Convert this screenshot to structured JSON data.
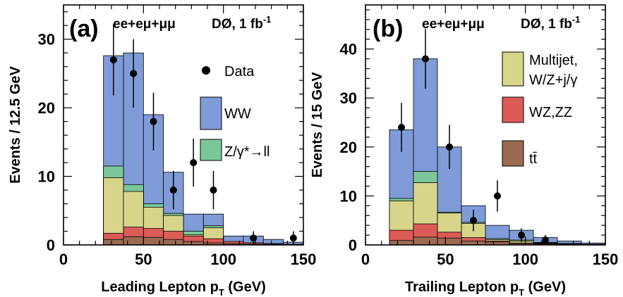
{
  "colors": {
    "ww": "#7f9bd8",
    "zgamma": "#7cc79a",
    "multijet": "#d6d58a",
    "wzzz": "#dd5b57",
    "ttbar": "#9b6a52",
    "data": "#000000"
  },
  "chart_data": [
    {
      "type": "bar",
      "panel": "(a)",
      "header": "ee+eμ+μμ",
      "experiment": "DØ, 1 fb",
      "experiment_sup": "-1",
      "xlabel_main": "Leading Lepton p",
      "xlabel_sub": "T",
      "xlabel_unit": " (GeV)",
      "ylabel": "Events / 12.5 GeV",
      "xlim": [
        0,
        150
      ],
      "ylim": [
        0,
        35
      ],
      "xticks": [
        0,
        50,
        100,
        150
      ],
      "yticks": [
        0,
        10,
        20,
        30
      ],
      "tick_labels_x": [
        "0",
        "50",
        "100",
        "150"
      ],
      "tick_labels_y": [
        "0",
        "10",
        "20",
        "30"
      ],
      "bin_edges": [
        25,
        37.5,
        50,
        62.5,
        75,
        87.5,
        100,
        112.5,
        125,
        137.5,
        150
      ],
      "stack": [
        {
          "key": "ttbar",
          "values": [
            0.8,
            1.2,
            1.1,
            0.8,
            0.5,
            0.3,
            0.2,
            0.1,
            0.05,
            0.02
          ]
        },
        {
          "key": "wzzz",
          "values": [
            1.7,
            2.6,
            2.4,
            2.0,
            1.3,
            0.9,
            0.5,
            0.3,
            0.15,
            0.05
          ]
        },
        {
          "key": "multijet",
          "values": [
            9.8,
            7.8,
            5.5,
            4.3,
            1.5,
            2.5,
            0.2,
            0.15,
            0.1,
            0.05
          ]
        },
        {
          "key": "zgamma",
          "values": [
            11.5,
            8.8,
            6.0,
            4.6,
            2.0,
            2.8,
            0.4,
            0.3,
            0.2,
            0.1
          ]
        },
        {
          "key": "ww",
          "values": [
            27.6,
            28.0,
            19.0,
            10.6,
            4.5,
            4.5,
            1.3,
            1.3,
            0.8,
            0.4
          ]
        }
      ],
      "data_points": [
        {
          "x": 31.25,
          "y": 27,
          "err": 5.2
        },
        {
          "x": 43.75,
          "y": 25,
          "err": 5.0
        },
        {
          "x": 56.25,
          "y": 18,
          "err": 4.2
        },
        {
          "x": 68.75,
          "y": 8,
          "err": 2.8
        },
        {
          "x": 81.25,
          "y": 12,
          "err": 3.5
        },
        {
          "x": 93.75,
          "y": 8,
          "err": 2.8
        },
        {
          "x": 118.75,
          "y": 1,
          "err": 1.0
        },
        {
          "x": 143.75,
          "y": 1,
          "err": 1.0
        }
      ],
      "legend": [
        {
          "key": "data",
          "kind": "marker",
          "label": "Data"
        },
        {
          "key": "ww",
          "kind": "box",
          "label": "WW"
        },
        {
          "key": "zgamma",
          "kind": "box",
          "label": "Z/γ*→ll"
        }
      ]
    },
    {
      "type": "bar",
      "panel": "(b)",
      "header": "ee+eμ+μμ",
      "experiment": "DØ, 1 fb",
      "experiment_sup": "-1",
      "xlabel_main": "Trailing Lepton p",
      "xlabel_sub": "T",
      "xlabel_unit": " (GeV)",
      "ylabel": "Events / 15 GeV",
      "xlim": [
        0,
        150
      ],
      "ylim": [
        0,
        49
      ],
      "xticks": [
        0,
        50,
        100,
        150
      ],
      "yticks": [
        0,
        10,
        20,
        30,
        40
      ],
      "tick_labels_x": [
        "0",
        "50",
        "100",
        "150"
      ],
      "tick_labels_y": [
        "0",
        "10",
        "20",
        "30",
        "40"
      ],
      "bin_edges": [
        15,
        30,
        45,
        60,
        75,
        90,
        105,
        120,
        135,
        150
      ],
      "stack": [
        {
          "key": "ttbar",
          "values": [
            0.9,
            1.6,
            1.4,
            0.8,
            0.6,
            0.3,
            0.2,
            0.1,
            0.05
          ]
        },
        {
          "key": "wzzz",
          "values": [
            3.0,
            4.3,
            2.6,
            1.5,
            0.8,
            0.4,
            0.3,
            0.15,
            0.05
          ]
        },
        {
          "key": "multijet",
          "values": [
            9.0,
            12.7,
            6.5,
            4.4,
            1.1,
            0.8,
            0.4,
            0.2,
            0.1
          ]
        },
        {
          "key": "zgamma",
          "values": [
            9.5,
            15.0,
            6.7,
            4.6,
            1.3,
            1.0,
            0.5,
            0.3,
            0.15
          ]
        },
        {
          "key": "ww",
          "values": [
            23.5,
            38.0,
            20.0,
            8.0,
            4.0,
            3.0,
            1.5,
            0.8,
            0.4
          ]
        }
      ],
      "data_points": [
        {
          "x": 22.5,
          "y": 24,
          "err": 5.0
        },
        {
          "x": 37.5,
          "y": 38,
          "err": 6.1
        },
        {
          "x": 52.5,
          "y": 20,
          "err": 4.5
        },
        {
          "x": 67.5,
          "y": 5,
          "err": 2.2
        },
        {
          "x": 82.5,
          "y": 10,
          "err": 3.2
        },
        {
          "x": 97.5,
          "y": 2,
          "err": 1.4
        },
        {
          "x": 112.5,
          "y": 1,
          "err": 1.0
        }
      ],
      "legend": [
        {
          "key": "multijet",
          "kind": "box",
          "label": "Multijet,",
          "label2": "W/Z+j/γ"
        },
        {
          "key": "wzzz",
          "kind": "box",
          "label": "WZ,ZZ"
        },
        {
          "key": "ttbar",
          "kind": "box",
          "label": "tt̄"
        }
      ]
    }
  ]
}
